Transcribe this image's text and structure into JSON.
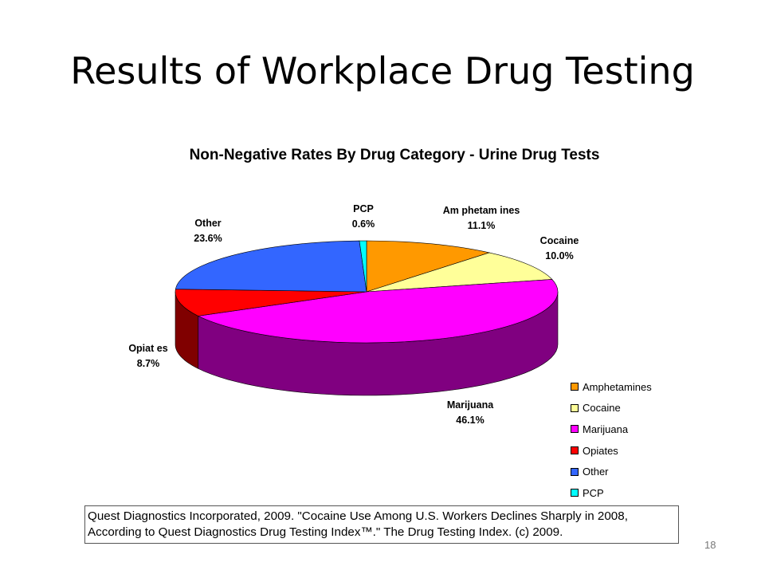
{
  "slide": {
    "title": "Results of Workplace Drug Testing",
    "page_number": "18"
  },
  "citation": {
    "line1": "Quest Diagnostics Incorporated, 2009. \"Cocaine Use Among U.S. Workers Declines Sharply in 2008,",
    "line2": "According to Quest Diagnostics Drug Testing Index™.\" The Drug Testing Index. (c) 2009."
  },
  "chart_data": {
    "type": "pie",
    "title": "Non-Negative Rates By Drug Category - Urine Drug Tests",
    "style": "3d",
    "legend_position": "bottom-right",
    "slices": [
      {
        "name": "Amphetamines",
        "label": "Am phetam ines",
        "value": 11.1,
        "value_label": "11.1%",
        "color": "#FF9900",
        "side": "#B36B00"
      },
      {
        "name": "Cocaine",
        "label": "Cocaine",
        "value": 10.0,
        "value_label": "10.0%",
        "color": "#FFFF99",
        "side": "#B3B36B"
      },
      {
        "name": "Marijuana",
        "label": "Marijuana",
        "value": 46.1,
        "value_label": "46.1%",
        "color": "#FF00FF",
        "side": "#800080"
      },
      {
        "name": "Opiates",
        "label": "Opiat es",
        "value": 8.7,
        "value_label": "8.7%",
        "color": "#FF0000",
        "side": "#800000"
      },
      {
        "name": "Other",
        "label": "Other",
        "value": 23.6,
        "value_label": "23.6%",
        "color": "#3366FF",
        "side": "#24479F"
      },
      {
        "name": "PCP",
        "label": "PCP",
        "value": 0.6,
        "value_label": "0.6%",
        "color": "#00FFFF",
        "side": "#00B3B3"
      }
    ]
  }
}
